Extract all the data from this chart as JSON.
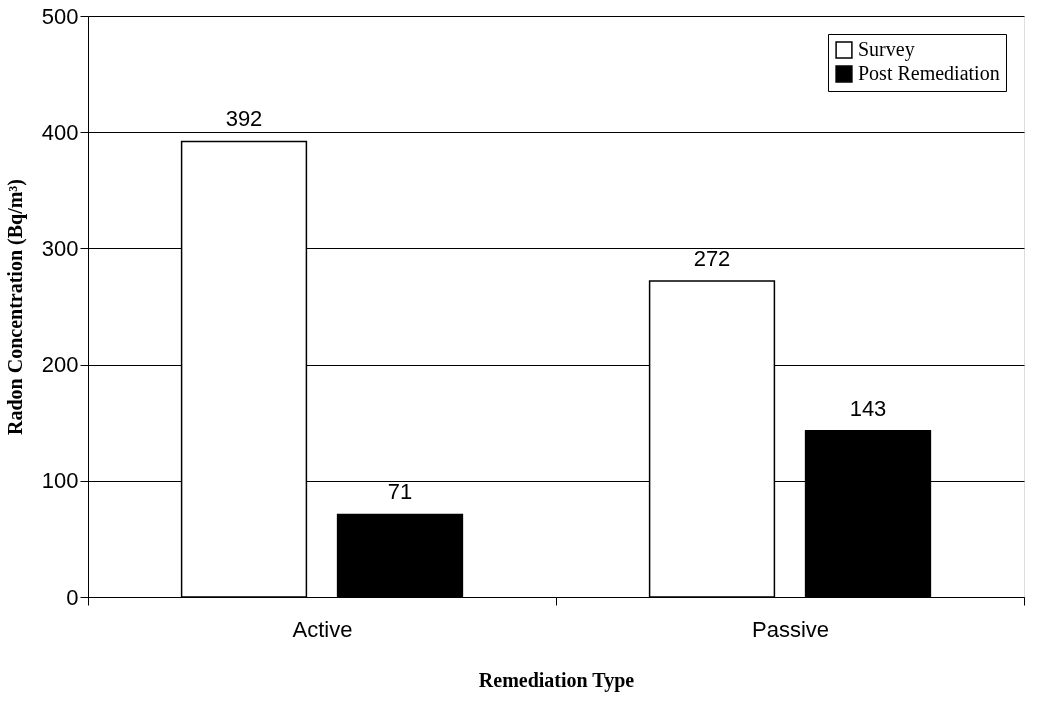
{
  "chart_data": {
    "type": "bar",
    "xlabel": "Remediation Type",
    "ylabel": "Radon Concentration (Bq/m³)",
    "categories": [
      "Active",
      "Passive"
    ],
    "series": [
      {
        "name": "Survey",
        "color": "#ffffff",
        "values": [
          392,
          272
        ]
      },
      {
        "name": "Post Remediation",
        "color": "#000000",
        "values": [
          71,
          143
        ]
      }
    ],
    "ylim": [
      0,
      500
    ],
    "yticks": [
      0,
      100,
      200,
      300,
      400,
      500
    ],
    "grid": "y",
    "legend": "top right",
    "data_labels": true
  }
}
